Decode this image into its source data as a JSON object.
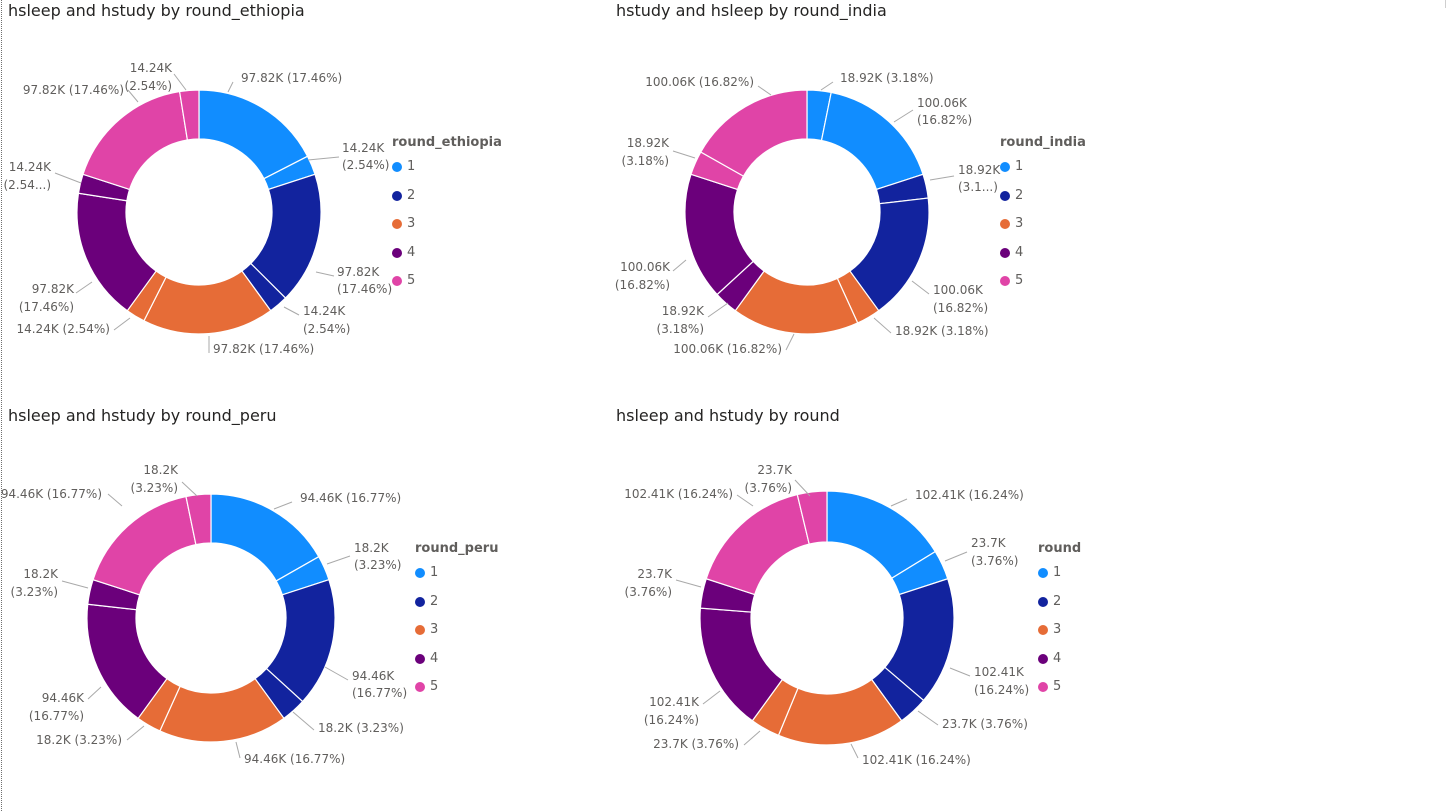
{
  "colors": {
    "1": "#118DFF",
    "2": "#12239E",
    "3": "#E66C37",
    "4": "#6B007B",
    "5": "#E044A7"
  },
  "chart_data": [
    {
      "type": "donut",
      "title": "hsleep and hstudy by round_ethiopia",
      "legend_title": "round_ethiopia",
      "legend": [
        "1",
        "2",
        "3",
        "4",
        "5"
      ],
      "slices": [
        {
          "round": "1",
          "measure": "hsleep",
          "value": 97820,
          "label": "97.82K (17.46%)"
        },
        {
          "round": "1",
          "measure": "hstudy",
          "value": 14240,
          "label": "14.24K (2.54%)"
        },
        {
          "round": "2",
          "measure": "hsleep",
          "value": 97820,
          "label": "97.82K (17.46%)"
        },
        {
          "round": "2",
          "measure": "hstudy",
          "value": 14240,
          "label": "14.24K (2.54%)"
        },
        {
          "round": "3",
          "measure": "hsleep",
          "value": 97820,
          "label": "97.82K (17.46%)"
        },
        {
          "round": "3",
          "measure": "hstudy",
          "value": 14240,
          "label": "14.24K (2.54%)"
        },
        {
          "round": "4",
          "measure": "hsleep",
          "value": 97820,
          "label": "97.82K (17.46%)"
        },
        {
          "round": "4",
          "measure": "hstudy",
          "value": 14240,
          "label": "14.24K (2.54...)"
        },
        {
          "round": "5",
          "measure": "hsleep",
          "value": 97820,
          "label": "97.82K (17.46%)"
        },
        {
          "round": "5",
          "measure": "hstudy",
          "value": 14240,
          "label": "14.24K (2.54%)"
        }
      ]
    },
    {
      "type": "donut",
      "title": "hstudy and hsleep by round_india",
      "legend_title": "round_india",
      "legend": [
        "1",
        "2",
        "3",
        "4",
        "5"
      ],
      "slices": [
        {
          "round": "1",
          "measure": "hstudy",
          "value": 18920,
          "label": "18.92K (3.18%)"
        },
        {
          "round": "1",
          "measure": "hsleep",
          "value": 100060,
          "label": "100.06K (16.82%)"
        },
        {
          "round": "2",
          "measure": "hstudy",
          "value": 18920,
          "label": "18.92K (3.1...)"
        },
        {
          "round": "2",
          "measure": "hsleep",
          "value": 100060,
          "label": "100.06K (16.82%)"
        },
        {
          "round": "3",
          "measure": "hstudy",
          "value": 18920,
          "label": "18.92K (3.18%)"
        },
        {
          "round": "3",
          "measure": "hsleep",
          "value": 100060,
          "label": "100.06K (16.82%)"
        },
        {
          "round": "4",
          "measure": "hstudy",
          "value": 18920,
          "label": "18.92K (3.18%)"
        },
        {
          "round": "4",
          "measure": "hsleep",
          "value": 100060,
          "label": "100.06K (16.82%)"
        },
        {
          "round": "5",
          "measure": "hstudy",
          "value": 18920,
          "label": "18.92K (3.18%)"
        },
        {
          "round": "5",
          "measure": "hsleep",
          "value": 100060,
          "label": "100.06K (16.82%)"
        }
      ]
    },
    {
      "type": "donut",
      "title": "hsleep and hstudy by round_peru",
      "legend_title": "round_peru",
      "legend": [
        "1",
        "2",
        "3",
        "4",
        "5"
      ],
      "slices": [
        {
          "round": "1",
          "measure": "hsleep",
          "value": 94460,
          "label": "94.46K (16.77%)"
        },
        {
          "round": "1",
          "measure": "hstudy",
          "value": 18200,
          "label": "18.2K (3.23%)"
        },
        {
          "round": "2",
          "measure": "hsleep",
          "value": 94460,
          "label": "94.46K (16.77%)"
        },
        {
          "round": "2",
          "measure": "hstudy",
          "value": 18200,
          "label": "18.2K (3.23%)"
        },
        {
          "round": "3",
          "measure": "hsleep",
          "value": 94460,
          "label": "94.46K (16.77%)"
        },
        {
          "round": "3",
          "measure": "hstudy",
          "value": 18200,
          "label": "18.2K (3.23%)"
        },
        {
          "round": "4",
          "measure": "hsleep",
          "value": 94460,
          "label": "94.46K (16.77%)"
        },
        {
          "round": "4",
          "measure": "hstudy",
          "value": 18200,
          "label": "18.2K (3.23%)"
        },
        {
          "round": "5",
          "measure": "hsleep",
          "value": 94460,
          "label": "94.46K (16.77%)"
        },
        {
          "round": "5",
          "measure": "hstudy",
          "value": 18200,
          "label": "18.2K (3.23%)"
        }
      ]
    },
    {
      "type": "donut",
      "title": "hsleep and hstudy by round",
      "legend_title": "round",
      "legend": [
        "1",
        "2",
        "3",
        "4",
        "5"
      ],
      "slices": [
        {
          "round": "1",
          "measure": "hsleep",
          "value": 102410,
          "label": "102.41K (16.24%)"
        },
        {
          "round": "1",
          "measure": "hstudy",
          "value": 23700,
          "label": "23.7K (3.76%)"
        },
        {
          "round": "2",
          "measure": "hsleep",
          "value": 102410,
          "label": "102.41K (16.24%)"
        },
        {
          "round": "2",
          "measure": "hstudy",
          "value": 23700,
          "label": "23.7K (3.76%)"
        },
        {
          "round": "3",
          "measure": "hsleep",
          "value": 102410,
          "label": "102.41K (16.24%)"
        },
        {
          "round": "3",
          "measure": "hstudy",
          "value": 23700,
          "label": "23.7K (3.76%)"
        },
        {
          "round": "4",
          "measure": "hsleep",
          "value": 102410,
          "label": "102.41K (16.24%)"
        },
        {
          "round": "4",
          "measure": "hstudy",
          "value": 23700,
          "label": "23.7K (3.76%)"
        },
        {
          "round": "5",
          "measure": "hsleep",
          "value": 102410,
          "label": "102.41K (16.24%)"
        },
        {
          "round": "5",
          "measure": "hstudy",
          "value": 23700,
          "label": "23.7K (3.76%)"
        }
      ]
    }
  ]
}
